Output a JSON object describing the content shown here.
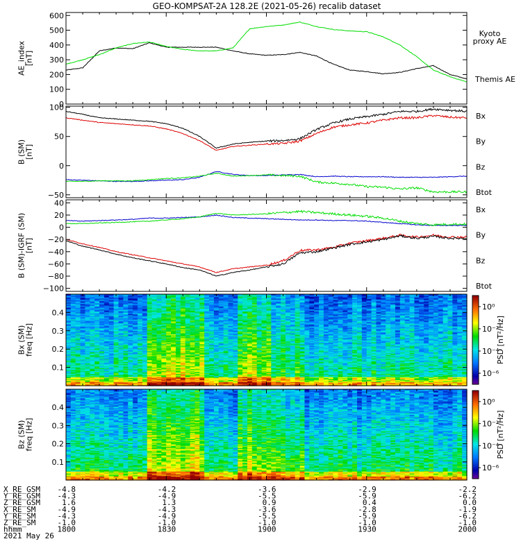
{
  "title": "GEO-KOMPSAT-2A 128.2E (2021-05-26) recalib dataset",
  "colors": {
    "black": "#000000",
    "green": "#00dd00",
    "blue": "#0000cc",
    "red": "#dd0000"
  },
  "chart_data": [
    {
      "type": "line",
      "ylabel": "AE_index\n[nT]",
      "ylim": [
        0,
        620
      ],
      "yticks": [
        0,
        100,
        200,
        300,
        400,
        500,
        600
      ],
      "x": [
        0,
        5,
        10,
        15,
        20,
        25,
        30,
        35,
        40,
        45,
        50,
        55,
        60,
        65,
        70,
        75,
        80,
        85,
        90,
        95,
        100,
        105,
        110,
        115,
        120
      ],
      "series": [
        {
          "name": "Themis AE",
          "color": "#000000",
          "values": [
            230,
            245,
            360,
            380,
            375,
            415,
            385,
            385,
            385,
            385,
            360,
            340,
            330,
            335,
            350,
            325,
            270,
            230,
            220,
            205,
            215,
            240,
            260,
            200,
            170
          ]
        },
        {
          "name": "Kyoto proxy AE",
          "color": "#00dd00",
          "values": [
            270,
            300,
            335,
            380,
            410,
            420,
            390,
            370,
            360,
            360,
            380,
            510,
            525,
            535,
            555,
            525,
            505,
            495,
            490,
            455,
            400,
            320,
            230,
            185,
            150
          ]
        }
      ],
      "legend": [
        {
          "text": "Kyoto",
          "color": "#00dd00"
        },
        {
          "text": "proxy AE",
          "color": "#00dd00"
        },
        {
          "text": "Themis AE",
          "color": "#000000"
        }
      ]
    },
    {
      "type": "line",
      "ylabel": "B (SM)\n[nT]",
      "ylim": [
        -55,
        102
      ],
      "yticks": [
        -50,
        0,
        50,
        100
      ],
      "x": [
        0,
        5,
        10,
        15,
        20,
        25,
        30,
        35,
        40,
        45,
        50,
        55,
        60,
        65,
        70,
        75,
        80,
        85,
        90,
        95,
        100,
        105,
        110,
        115,
        120
      ],
      "series": [
        {
          "name": "Bx",
          "color": "#0000cc",
          "values": [
            -24,
            -25,
            -26,
            -27,
            -27,
            -26,
            -25,
            -24,
            -20,
            -10,
            -15,
            -17,
            -17,
            -16,
            -15,
            -19,
            -18,
            -19,
            -19,
            -19,
            -20,
            -20,
            -20,
            -19,
            -18
          ]
        },
        {
          "name": "By",
          "color": "#00dd00",
          "values": [
            -27,
            -27,
            -26,
            -26,
            -26,
            -24,
            -22,
            -21,
            -18,
            -13,
            -18,
            -17,
            -16,
            -17,
            -18,
            -28,
            -30,
            -32,
            -36,
            -37,
            -40,
            -38,
            -45,
            -45,
            -45
          ]
        },
        {
          "name": "Bz",
          "color": "#dd0000",
          "values": [
            82,
            78,
            74,
            72,
            70,
            68,
            63,
            55,
            43,
            26,
            33,
            35,
            37,
            38,
            42,
            55,
            66,
            70,
            73,
            78,
            82,
            82,
            86,
            83,
            82
          ]
        },
        {
          "name": "Btot",
          "color": "#000000",
          "values": [
            93,
            88,
            82,
            80,
            78,
            76,
            72,
            64,
            50,
            30,
            37,
            40,
            42,
            43,
            46,
            62,
            73,
            80,
            84,
            88,
            93,
            93,
            97,
            95,
            93
          ]
        }
      ],
      "legend": [
        {
          "text": "Bx",
          "color": "#0000cc"
        },
        {
          "text": "By",
          "color": "#00dd00"
        },
        {
          "text": "Bz",
          "color": "#dd0000"
        },
        {
          "text": "Btot",
          "color": "#000000"
        }
      ]
    },
    {
      "type": "line",
      "ylabel": "B (SM)-IGRF (SM)\n[nT]",
      "ylim": [
        -105,
        45
      ],
      "yticks": [
        -100,
        -80,
        -60,
        -40,
        -20,
        0,
        20,
        40
      ],
      "x": [
        0,
        5,
        10,
        15,
        20,
        25,
        30,
        35,
        40,
        45,
        50,
        55,
        60,
        65,
        70,
        75,
        80,
        85,
        90,
        95,
        100,
        105,
        110,
        115,
        120
      ],
      "series": [
        {
          "name": "Bx",
          "color": "#0000cc",
          "values": [
            11,
            10,
            11,
            12,
            13,
            15,
            15,
            16,
            17,
            20,
            16,
            15,
            14,
            13,
            12,
            12,
            11,
            11,
            10,
            8,
            6,
            4,
            3,
            3,
            3
          ]
        },
        {
          "name": "By",
          "color": "#00dd00",
          "values": [
            6,
            6,
            7,
            8,
            9,
            10,
            12,
            14,
            17,
            23,
            20,
            21,
            22,
            24,
            26,
            24,
            22,
            20,
            18,
            15,
            10,
            6,
            4,
            5,
            5
          ]
        },
        {
          "name": "Bz",
          "color": "#dd0000",
          "values": [
            -20,
            -27,
            -33,
            -40,
            -45,
            -50,
            -55,
            -60,
            -65,
            -74,
            -68,
            -65,
            -62,
            -55,
            -38,
            -37,
            -33,
            -26,
            -22,
            -18,
            -13,
            -16,
            -13,
            -16,
            -16
          ]
        },
        {
          "name": "Btot",
          "color": "#000000",
          "values": [
            -22,
            -31,
            -37,
            -44,
            -50,
            -55,
            -60,
            -66,
            -70,
            -80,
            -74,
            -70,
            -65,
            -60,
            -42,
            -40,
            -34,
            -28,
            -24,
            -20,
            -14,
            -18,
            -15,
            -18,
            -18
          ]
        }
      ],
      "legend": [
        {
          "text": "Bx",
          "color": "#0000cc"
        },
        {
          "text": "By",
          "color": "#00dd00"
        },
        {
          "text": "Bz",
          "color": "#dd0000"
        },
        {
          "text": "Btot",
          "color": "#000000"
        }
      ]
    },
    {
      "type": "heatmap",
      "ylabel": "Bx (SM)\nfreq [Hz]",
      "ylim": [
        0,
        0.5
      ],
      "yticks": [
        0.1,
        0.2,
        0.3,
        0.4
      ],
      "colorbar": {
        "label": "PSD [nT²/Hz]",
        "ticks": [
          "10⁰",
          "10⁻²",
          "10⁻⁴",
          "10⁻⁶"
        ],
        "tick_log": [
          0,
          -2,
          -4,
          -6
        ],
        "range_log": [
          -7,
          1
        ]
      }
    },
    {
      "type": "heatmap",
      "ylabel": "Bz (SM)\nfreq [Hz]",
      "ylim": [
        0,
        0.5
      ],
      "yticks": [
        0.1,
        0.2,
        0.3,
        0.4
      ],
      "colorbar": {
        "label": "PSD [nT²/Hz]",
        "ticks": [
          "10⁰",
          "10⁻²",
          "10⁻⁴",
          "10⁻⁶"
        ],
        "tick_log": [
          0,
          -2,
          -4,
          -6
        ],
        "range_log": [
          -7,
          1
        ]
      }
    }
  ],
  "time_axis": {
    "range_min": [
      0,
      120
    ],
    "tick_min": [
      0,
      30,
      60,
      90,
      120
    ]
  },
  "ephemeris": {
    "rows": [
      {
        "label": "X_RE_GSM",
        "values": [
          "-4.8",
          "-4.2",
          "-3.6",
          "-2.9",
          "-2.2"
        ]
      },
      {
        "label": "Y_RE_GSM",
        "values": [
          "-4.3",
          "-4.9",
          "-5.5",
          "-5.9",
          "-6.2"
        ]
      },
      {
        "label": "Z_RE_GSM",
        "values": [
          "1.6",
          "1.3",
          "0.9",
          "0.4",
          "0.0"
        ]
      },
      {
        "label": "X_RE_SM",
        "values": [
          "-4.9",
          "-4.3",
          "-3.6",
          "-2.8",
          "-1.9"
        ]
      },
      {
        "label": "Y_RE_SM",
        "values": [
          "-4.3",
          "-4.9",
          "-5.5",
          "-5.9",
          "-6.2"
        ]
      },
      {
        "label": "Z_RE_SM",
        "values": [
          "-1.0",
          "-1.0",
          "-1.0",
          "-1.0",
          "-1.0"
        ]
      },
      {
        "label": "hhmm",
        "values": [
          "1800",
          "1830",
          "1900",
          "1930",
          "2000"
        ]
      }
    ],
    "date": "2021 May 26"
  }
}
